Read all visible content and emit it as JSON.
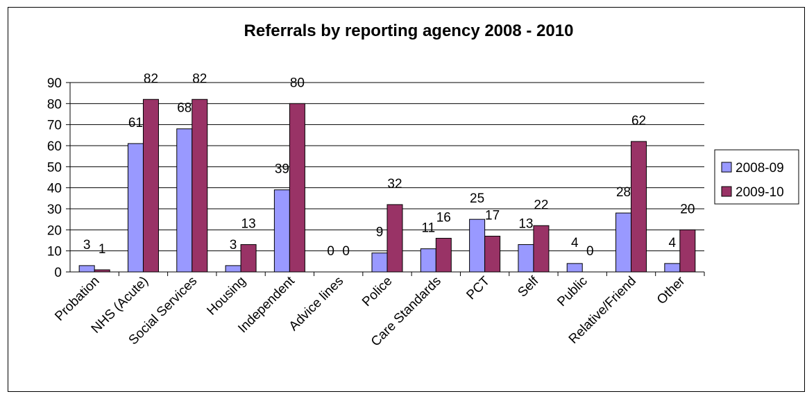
{
  "chart_data": {
    "type": "bar",
    "title": "Referrals by reporting agency 2008 - 2010",
    "xlabel": "",
    "ylabel": "",
    "ylim": [
      0,
      90
    ],
    "ytick_step": 10,
    "grid": true,
    "legend_position": "right",
    "categories": [
      "Probation",
      "NHS (Acute)",
      "Social Services",
      "Housing",
      "Independent",
      "Advice lines",
      "Police",
      "Care Standards",
      "PCT",
      "Self",
      "Public",
      "Relative/Friend",
      "Other"
    ],
    "series": [
      {
        "name": "2008-09",
        "color": "#9999FF",
        "values": [
          3,
          61,
          68,
          3,
          39,
          0,
          9,
          11,
          25,
          13,
          4,
          28,
          4
        ]
      },
      {
        "name": "2009-10",
        "color": "#993366",
        "values": [
          1,
          82,
          82,
          13,
          80,
          0,
          32,
          16,
          17,
          22,
          0,
          62,
          20
        ]
      }
    ]
  }
}
